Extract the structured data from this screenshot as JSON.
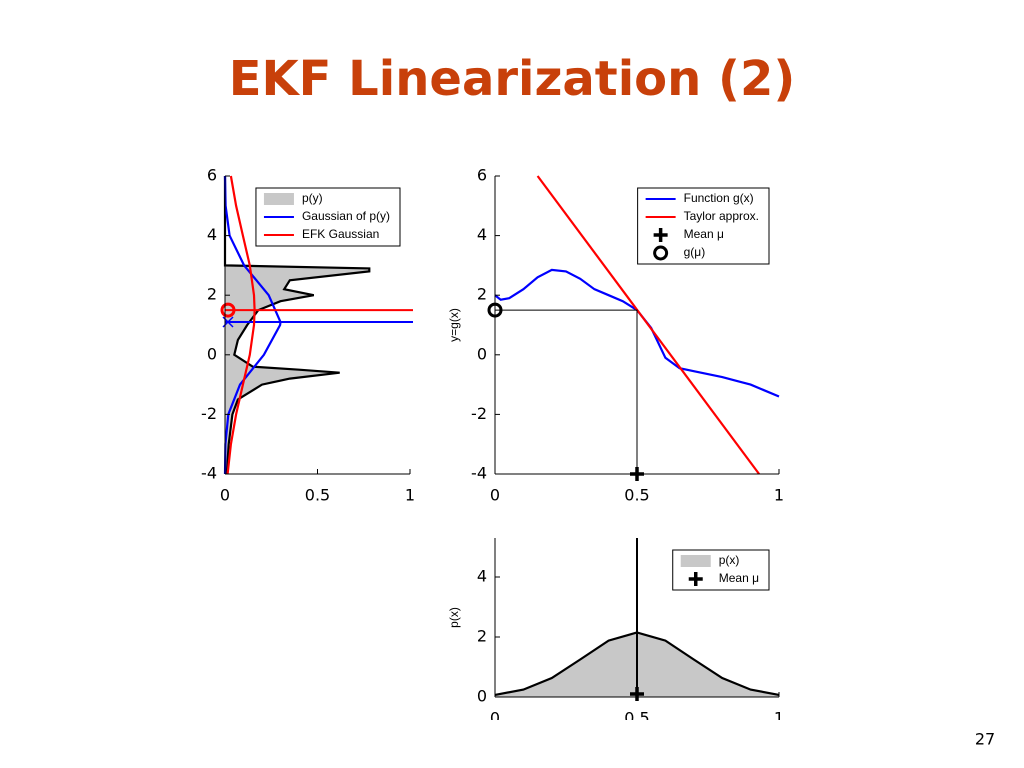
{
  "title": "EKF Linearization (2)",
  "page_number": "27",
  "chart_data": [
    {
      "type": "line",
      "orientation": "horizontal",
      "xlim": [
        0,
        1
      ],
      "xticks": [
        0,
        0.5,
        1
      ],
      "ylim": [
        -4,
        6
      ],
      "yticks": [
        -4,
        -2,
        0,
        2,
        4,
        6
      ],
      "legend": "upper right",
      "series": [
        {
          "name": "p(y)",
          "color": "#000000",
          "fill": "#c8c8c8",
          "y": [
            -4,
            -3,
            -2,
            -1.5,
            -1,
            -0.8,
            -0.6,
            -0.5,
            -0.4,
            0,
            0.5,
            1,
            1.5,
            1.8,
            2,
            2.2,
            2.5,
            2.8,
            2.9,
            3,
            4,
            6
          ],
          "values": [
            0.01,
            0.02,
            0.04,
            0.07,
            0.2,
            0.35,
            0.62,
            0.4,
            0.15,
            0.05,
            0.07,
            0.12,
            0.18,
            0.3,
            0.48,
            0.32,
            0.35,
            0.78,
            0.78,
            0,
            0,
            0
          ]
        },
        {
          "name": "Gaussian of p(y)",
          "color": "#0000ff",
          "mean": 1.1,
          "marker": "x",
          "y": [
            -4,
            -3,
            -2,
            -1,
            0,
            1,
            1.1,
            2,
            3,
            4,
            5,
            6
          ],
          "values": [
            0,
            0.002,
            0.018,
            0.081,
            0.21,
            0.298,
            0.3,
            0.236,
            0.103,
            0.025,
            0.003,
            0
          ]
        },
        {
          "name": "EFK Gaussian",
          "color": "#ff0000",
          "mean": 1.5,
          "marker": "circle",
          "y": [
            -4,
            -3,
            -2,
            -1,
            0,
            1,
            1.5,
            2,
            3,
            4,
            5,
            6
          ],
          "values": [
            0.014,
            0.032,
            0.06,
            0.097,
            0.134,
            0.157,
            0.16,
            0.157,
            0.134,
            0.097,
            0.06,
            0.032
          ]
        }
      ]
    },
    {
      "type": "line",
      "ylabel": "y=g(x)",
      "xlim": [
        0,
        1
      ],
      "xticks": [
        0,
        0.5,
        1
      ],
      "ylim": [
        -4,
        6
      ],
      "yticks": [
        -4,
        -2,
        0,
        2,
        4,
        6
      ],
      "legend": "upper right",
      "guides": true,
      "series": [
        {
          "name": "Function g(x)",
          "color": "#0000ff",
          "x": [
            0,
            0.02,
            0.05,
            0.1,
            0.15,
            0.2,
            0.25,
            0.3,
            0.35,
            0.4,
            0.45,
            0.5,
            0.55,
            0.6,
            0.65,
            0.7,
            0.8,
            0.9,
            1
          ],
          "values": [
            2.0,
            1.85,
            1.9,
            2.2,
            2.6,
            2.85,
            2.8,
            2.55,
            2.2,
            2.0,
            1.8,
            1.5,
            0.9,
            -0.1,
            -0.45,
            -0.55,
            -0.75,
            -1.0,
            -1.4
          ]
        },
        {
          "name": "Taylor approx.",
          "color": "#ff0000",
          "x": [
            0.15,
            0.93
          ],
          "values": [
            6,
            -4
          ]
        },
        {
          "name": "Mean μ",
          "color": "#000000",
          "marker": "plus",
          "x": [
            0.5
          ],
          "values": [
            -4
          ]
        },
        {
          "name": "g(μ)",
          "color": "#000000",
          "marker": "circle",
          "x": [
            0
          ],
          "values": [
            1.5
          ]
        }
      ]
    },
    {
      "type": "line",
      "ylabel": "p(x)",
      "xlim": [
        0,
        1
      ],
      "xticks": [
        0,
        0.5,
        1
      ],
      "ylim": [
        0,
        5.3
      ],
      "yticks": [
        0,
        2,
        4
      ],
      "legend": "upper right",
      "series": [
        {
          "name": "p(x)",
          "color": "#000000",
          "fill": "#c8c8c8",
          "x": [
            0,
            0.1,
            0.2,
            0.3,
            0.4,
            0.5,
            0.6,
            0.7,
            0.8,
            0.9,
            1
          ],
          "values": [
            0.07,
            0.245,
            0.634,
            1.25,
            1.88,
            2.15,
            1.88,
            1.25,
            0.634,
            0.245,
            0.07
          ]
        },
        {
          "name": "Mean μ",
          "color": "#000000",
          "marker": "plus",
          "vline": true,
          "x": [
            0.5
          ],
          "values": [
            0.1
          ]
        }
      ]
    }
  ]
}
